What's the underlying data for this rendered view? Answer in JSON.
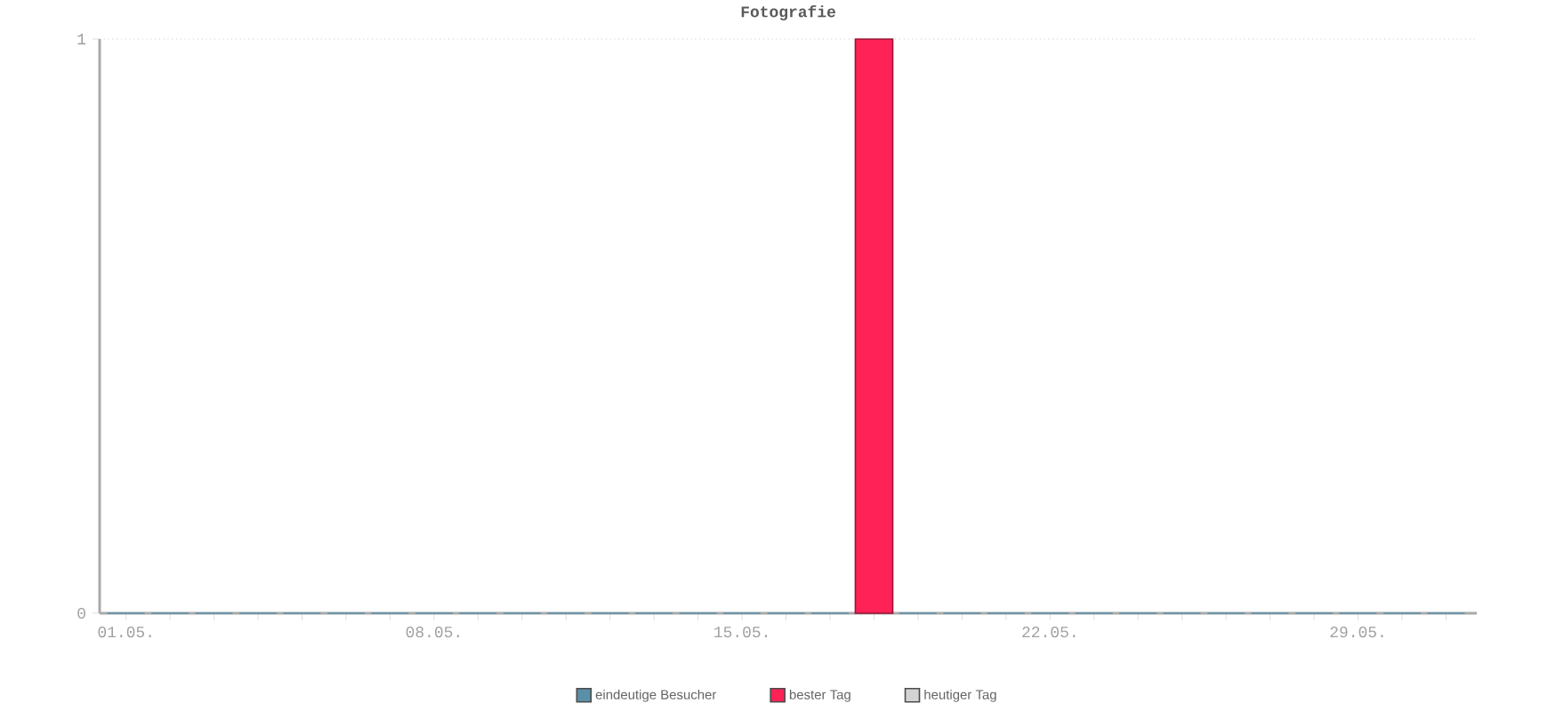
{
  "chart_data": {
    "type": "bar",
    "title": "Fotografie",
    "categories": [
      "01.05.",
      null,
      null,
      null,
      null,
      null,
      null,
      "08.05.",
      null,
      null,
      null,
      null,
      null,
      null,
      "15.05.",
      null,
      null,
      null,
      null,
      null,
      null,
      "22.05.",
      null,
      null,
      null,
      null,
      null,
      null,
      "29.05.",
      null,
      null
    ],
    "series": [
      {
        "name": "eindeutige Besucher",
        "color": "#5a8fa8",
        "values": [
          0,
          0,
          0,
          0,
          0,
          0,
          0,
          0,
          0,
          0,
          0,
          0,
          0,
          0,
          0,
          0,
          0,
          null,
          0,
          0,
          0,
          0,
          0,
          0,
          0,
          0,
          0,
          0,
          0,
          0,
          0
        ]
      },
      {
        "name": "bester Tag",
        "color": "#ff2257",
        "values": [
          null,
          null,
          null,
          null,
          null,
          null,
          null,
          null,
          null,
          null,
          null,
          null,
          null,
          null,
          null,
          null,
          null,
          1,
          null,
          null,
          null,
          null,
          null,
          null,
          null,
          null,
          null,
          null,
          null,
          null,
          null
        ]
      },
      {
        "name": "heutiger Tag",
        "color": "#d3d3d3",
        "values": [
          null,
          null,
          null,
          null,
          null,
          null,
          null,
          null,
          null,
          null,
          null,
          null,
          null,
          null,
          null,
          null,
          null,
          null,
          null,
          null,
          null,
          null,
          null,
          null,
          null,
          null,
          null,
          null,
          null,
          null,
          null
        ]
      }
    ],
    "ylim": [
      0,
      1
    ],
    "yticks": [
      0,
      1
    ],
    "grid": "y",
    "legend": "bottom"
  }
}
